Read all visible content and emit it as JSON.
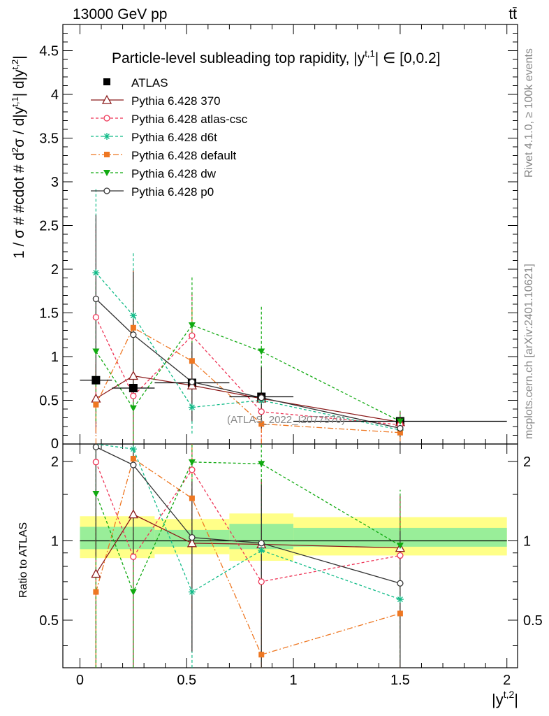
{
  "header": {
    "energy_label": "13000 GeV pp",
    "process_label": "tt̄"
  },
  "side_labels": {
    "rivet": "Rivet 4.1.0, ≥ 100k events",
    "mcplots": "mcplots.cern.ch [arXiv:2401.10621]"
  },
  "watermark": "(ATLAS_2022_I2077570)",
  "chart_data": [
    {
      "id": "main",
      "type": "line",
      "title": "Particle-level subleading top rapidity, |y^{t,1}| ∈ [0,0.2]",
      "ylabel": "1 / σ # #cdot # d²σ / d|y^{t,1}| d|y^{t,2}|",
      "xlabel": "|y^{t,2}|",
      "xlim": [
        -0.08,
        2.05
      ],
      "ylim": [
        0,
        4.8
      ],
      "yticks": [
        0.5,
        1,
        1.5,
        2,
        2.5,
        3,
        3.5,
        4,
        4.5
      ],
      "ytick_labels": [
        "0.5",
        "1",
        "1.5",
        "2",
        "2.5",
        "3",
        "3.5",
        "4",
        "4.5"
      ],
      "ytick_zero_label": "0",
      "x": [
        0.075,
        0.25,
        0.525,
        0.85,
        1.5
      ],
      "data": {
        "name": "ATLAS",
        "values": [
          0.73,
          0.64,
          0.7,
          0.54,
          0.26
        ],
        "xerr_bins": [
          [
            0.0,
            0.15
          ],
          [
            0.15,
            0.35
          ],
          [
            0.35,
            0.7
          ],
          [
            0.7,
            1.0
          ],
          [
            1.0,
            2.0
          ]
        ]
      },
      "series": [
        {
          "name": "Pythia 6.428 370",
          "color": "#8b1a1a",
          "marker": "triangle-open",
          "dash": "",
          "values": [
            0.52,
            0.78,
            0.67,
            0.52,
            0.25
          ],
          "errors": [
            0.4,
            1.2,
            0.4,
            0.35,
            0.12
          ]
        },
        {
          "name": "Pythia 6.428 atlas-csc",
          "color": "#ee3355",
          "marker": "circle-open",
          "dash": "4,3",
          "values": [
            1.45,
            0.55,
            1.24,
            0.37,
            0.22
          ],
          "errors": [
            1.05,
            1.45,
            0.5,
            0.35,
            0.12
          ]
        },
        {
          "name": "Pythia 6.428 d6t",
          "color": "#11bb88",
          "marker": "star",
          "dash": "4,3",
          "values": [
            1.96,
            1.47,
            0.42,
            0.5,
            0.16
          ],
          "errors": [
            0.98,
            0.72,
            0.3,
            0.3,
            0.1
          ]
        },
        {
          "name": "Pythia 6.428 default",
          "color": "#ee7722",
          "marker": "square",
          "dash": "8,3,2,3",
          "values": [
            0.45,
            1.33,
            0.95,
            0.23,
            0.13
          ],
          "errors": [
            0.45,
            0.65,
            0.6,
            0.23,
            0.1
          ]
        },
        {
          "name": "Pythia 6.428 dw",
          "color": "#11aa11",
          "marker": "triangle-down",
          "dash": "4,3",
          "values": [
            1.06,
            0.41,
            1.36,
            1.06,
            0.26
          ],
          "errors": [
            0.8,
            1.45,
            0.55,
            0.53,
            0.12
          ]
        },
        {
          "name": "Pythia 6.428 p0",
          "color": "#333333",
          "marker": "circle-open",
          "dash": "",
          "values": [
            1.66,
            1.25,
            0.71,
            0.53,
            0.18
          ],
          "errors": [
            0.96,
            0.72,
            0.45,
            0.35,
            0.1
          ]
        }
      ]
    },
    {
      "id": "ratio",
      "type": "line",
      "ylabel": "Ratio to ATLAS",
      "xlabel": "|y^{t,2}|",
      "xlim": [
        -0.08,
        2.05
      ],
      "ylim": [
        0.33,
        2.33
      ],
      "yticks": [
        0.5,
        1,
        2
      ],
      "ytick_labels": [
        "0.5",
        "1",
        "2"
      ],
      "xticks": [
        0,
        0.5,
        1,
        1.5,
        2
      ],
      "xtick_labels": [
        "0",
        "0.5",
        "1",
        "1.5",
        "2"
      ],
      "bands": [
        {
          "x0": 0.0,
          "x1": 0.35,
          "inner": [
            0.93,
            1.13
          ],
          "outer": [
            0.86,
            1.24
          ]
        },
        {
          "x0": 0.35,
          "x1": 0.7,
          "inner": [
            0.95,
            1.1
          ],
          "outer": [
            0.89,
            1.21
          ]
        },
        {
          "x0": 0.7,
          "x1": 1.0,
          "inner": [
            0.93,
            1.16
          ],
          "outer": [
            0.84,
            1.27
          ]
        },
        {
          "x0": 1.0,
          "x1": 2.0,
          "inner": [
            0.95,
            1.12
          ],
          "outer": [
            0.88,
            1.23
          ]
        }
      ],
      "series": [
        {
          "name": "Pythia 6.428 370",
          "values": [
            0.75,
            1.26,
            0.98,
            0.97,
            0.94
          ],
          "errors": [
            0.55,
            1.2,
            0.6,
            0.75,
            0.55
          ]
        },
        {
          "name": "Pythia 6.428 atlas-csc",
          "values": [
            1.99,
            0.87,
            1.86,
            0.7,
            0.88
          ],
          "errors": [
            1.6,
            2.3,
            0.75,
            0.7,
            0.6
          ]
        },
        {
          "name": "Pythia 6.428 d6t",
          "values": [
            2.42,
            2.23,
            0.64,
            0.92,
            0.6
          ],
          "errors": [
            1.4,
            1.1,
            0.5,
            0.6,
            0.4
          ]
        },
        {
          "name": "Pythia 6.428 default",
          "values": [
            0.64,
            2.05,
            1.45,
            0.37,
            0.53
          ],
          "errors": [
            0.64,
            1.0,
            0.9,
            0.37,
            0.4
          ]
        },
        {
          "name": "Pythia 6.428 dw",
          "values": [
            1.51,
            0.64,
            1.99,
            1.96,
            0.96
          ],
          "errors": [
            1.2,
            2.3,
            0.85,
            1.0,
            0.6
          ]
        },
        {
          "name": "Pythia 6.428 p0",
          "values": [
            2.27,
            1.94,
            1.03,
            0.98,
            0.69
          ],
          "errors": [
            1.4,
            1.1,
            0.65,
            0.65,
            0.4
          ]
        }
      ]
    }
  ]
}
